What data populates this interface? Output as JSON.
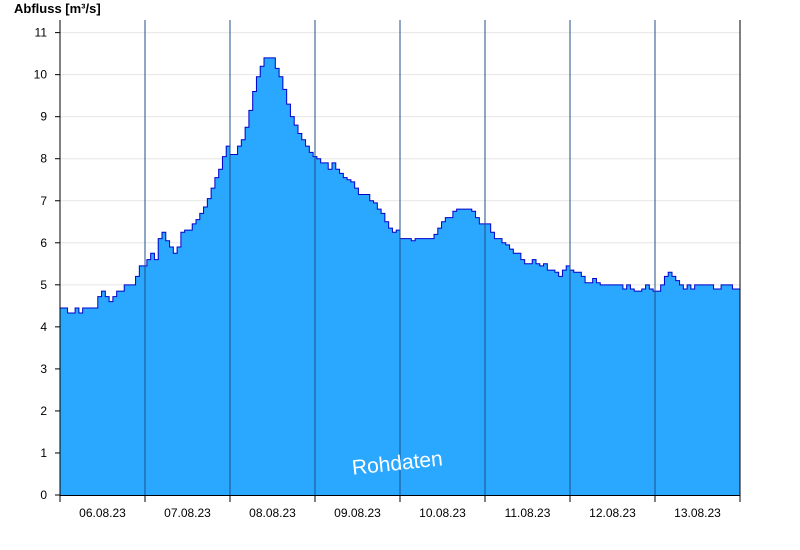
{
  "chart_data": {
    "type": "area",
    "ylabel": "Abfluss [m³/s]",
    "watermark": "Rohdaten",
    "ylim": [
      0,
      11.3
    ],
    "y_ticks": [
      0,
      1,
      2,
      3,
      4,
      5,
      6,
      7,
      8,
      9,
      10,
      11
    ],
    "x_range_days": [
      0,
      8
    ],
    "day_labels": [
      "06.08.23",
      "07.08.23",
      "08.08.23",
      "09.08.23",
      "10.08.23",
      "11.08.23",
      "12.08.23",
      "13.08.23"
    ],
    "grid": "horizontal",
    "colors": {
      "fill": "#2aa7ff",
      "line": "#0000cc",
      "grid": "#e6e6e6",
      "axis": "#000000"
    },
    "series": [
      {
        "values_m3s": [
          4.45,
          4.45,
          4.33,
          4.33,
          4.45,
          4.33,
          4.45,
          4.45,
          4.45,
          4.45,
          4.72,
          4.85,
          4.72,
          4.6,
          4.72,
          4.85,
          4.85,
          5.0,
          5.0,
          5.0,
          5.2,
          5.45,
          5.45,
          5.6,
          5.75,
          5.6,
          6.1,
          6.25,
          6.05,
          5.9,
          5.75,
          5.9,
          6.25,
          6.3,
          6.3,
          6.45,
          6.55,
          6.7,
          6.85,
          7.05,
          7.3,
          7.55,
          7.75,
          8.05,
          8.3,
          8.1,
          8.1,
          8.3,
          8.45,
          8.75,
          9.15,
          9.6,
          9.95,
          10.2,
          10.4,
          10.4,
          10.4,
          10.15,
          9.95,
          9.65,
          9.3,
          9.0,
          8.8,
          8.6,
          8.45,
          8.3,
          8.15,
          8.05,
          8.0,
          7.9,
          7.9,
          7.75,
          7.9,
          7.75,
          7.65,
          7.55,
          7.5,
          7.45,
          7.3,
          7.15,
          7.15,
          7.15,
          7.0,
          6.95,
          6.8,
          6.7,
          6.5,
          6.35,
          6.25,
          6.3,
          6.1,
          6.1,
          6.1,
          6.05,
          6.1,
          6.1,
          6.1,
          6.1,
          6.1,
          6.2,
          6.35,
          6.5,
          6.6,
          6.6,
          6.75,
          6.8,
          6.8,
          6.8,
          6.8,
          6.75,
          6.6,
          6.45,
          6.45,
          6.45,
          6.25,
          6.1,
          6.1,
          6.0,
          5.95,
          5.85,
          5.75,
          5.75,
          5.6,
          5.5,
          5.5,
          5.6,
          5.5,
          5.45,
          5.5,
          5.35,
          5.35,
          5.3,
          5.2,
          5.35,
          5.45,
          5.35,
          5.3,
          5.3,
          5.2,
          5.05,
          5.05,
          5.15,
          5.05,
          5.0,
          5.0,
          5.0,
          5.0,
          5.0,
          5.0,
          4.9,
          5.0,
          4.9,
          4.85,
          4.85,
          4.9,
          5.0,
          4.9,
          4.85,
          4.85,
          5.0,
          5.2,
          5.3,
          5.2,
          5.1,
          5.0,
          4.9,
          5.0,
          4.9,
          5.0,
          5.0,
          5.0,
          5.0,
          5.0,
          4.9,
          4.9,
          5.0,
          5.0,
          5.0,
          4.9,
          4.9
        ]
      }
    ]
  }
}
